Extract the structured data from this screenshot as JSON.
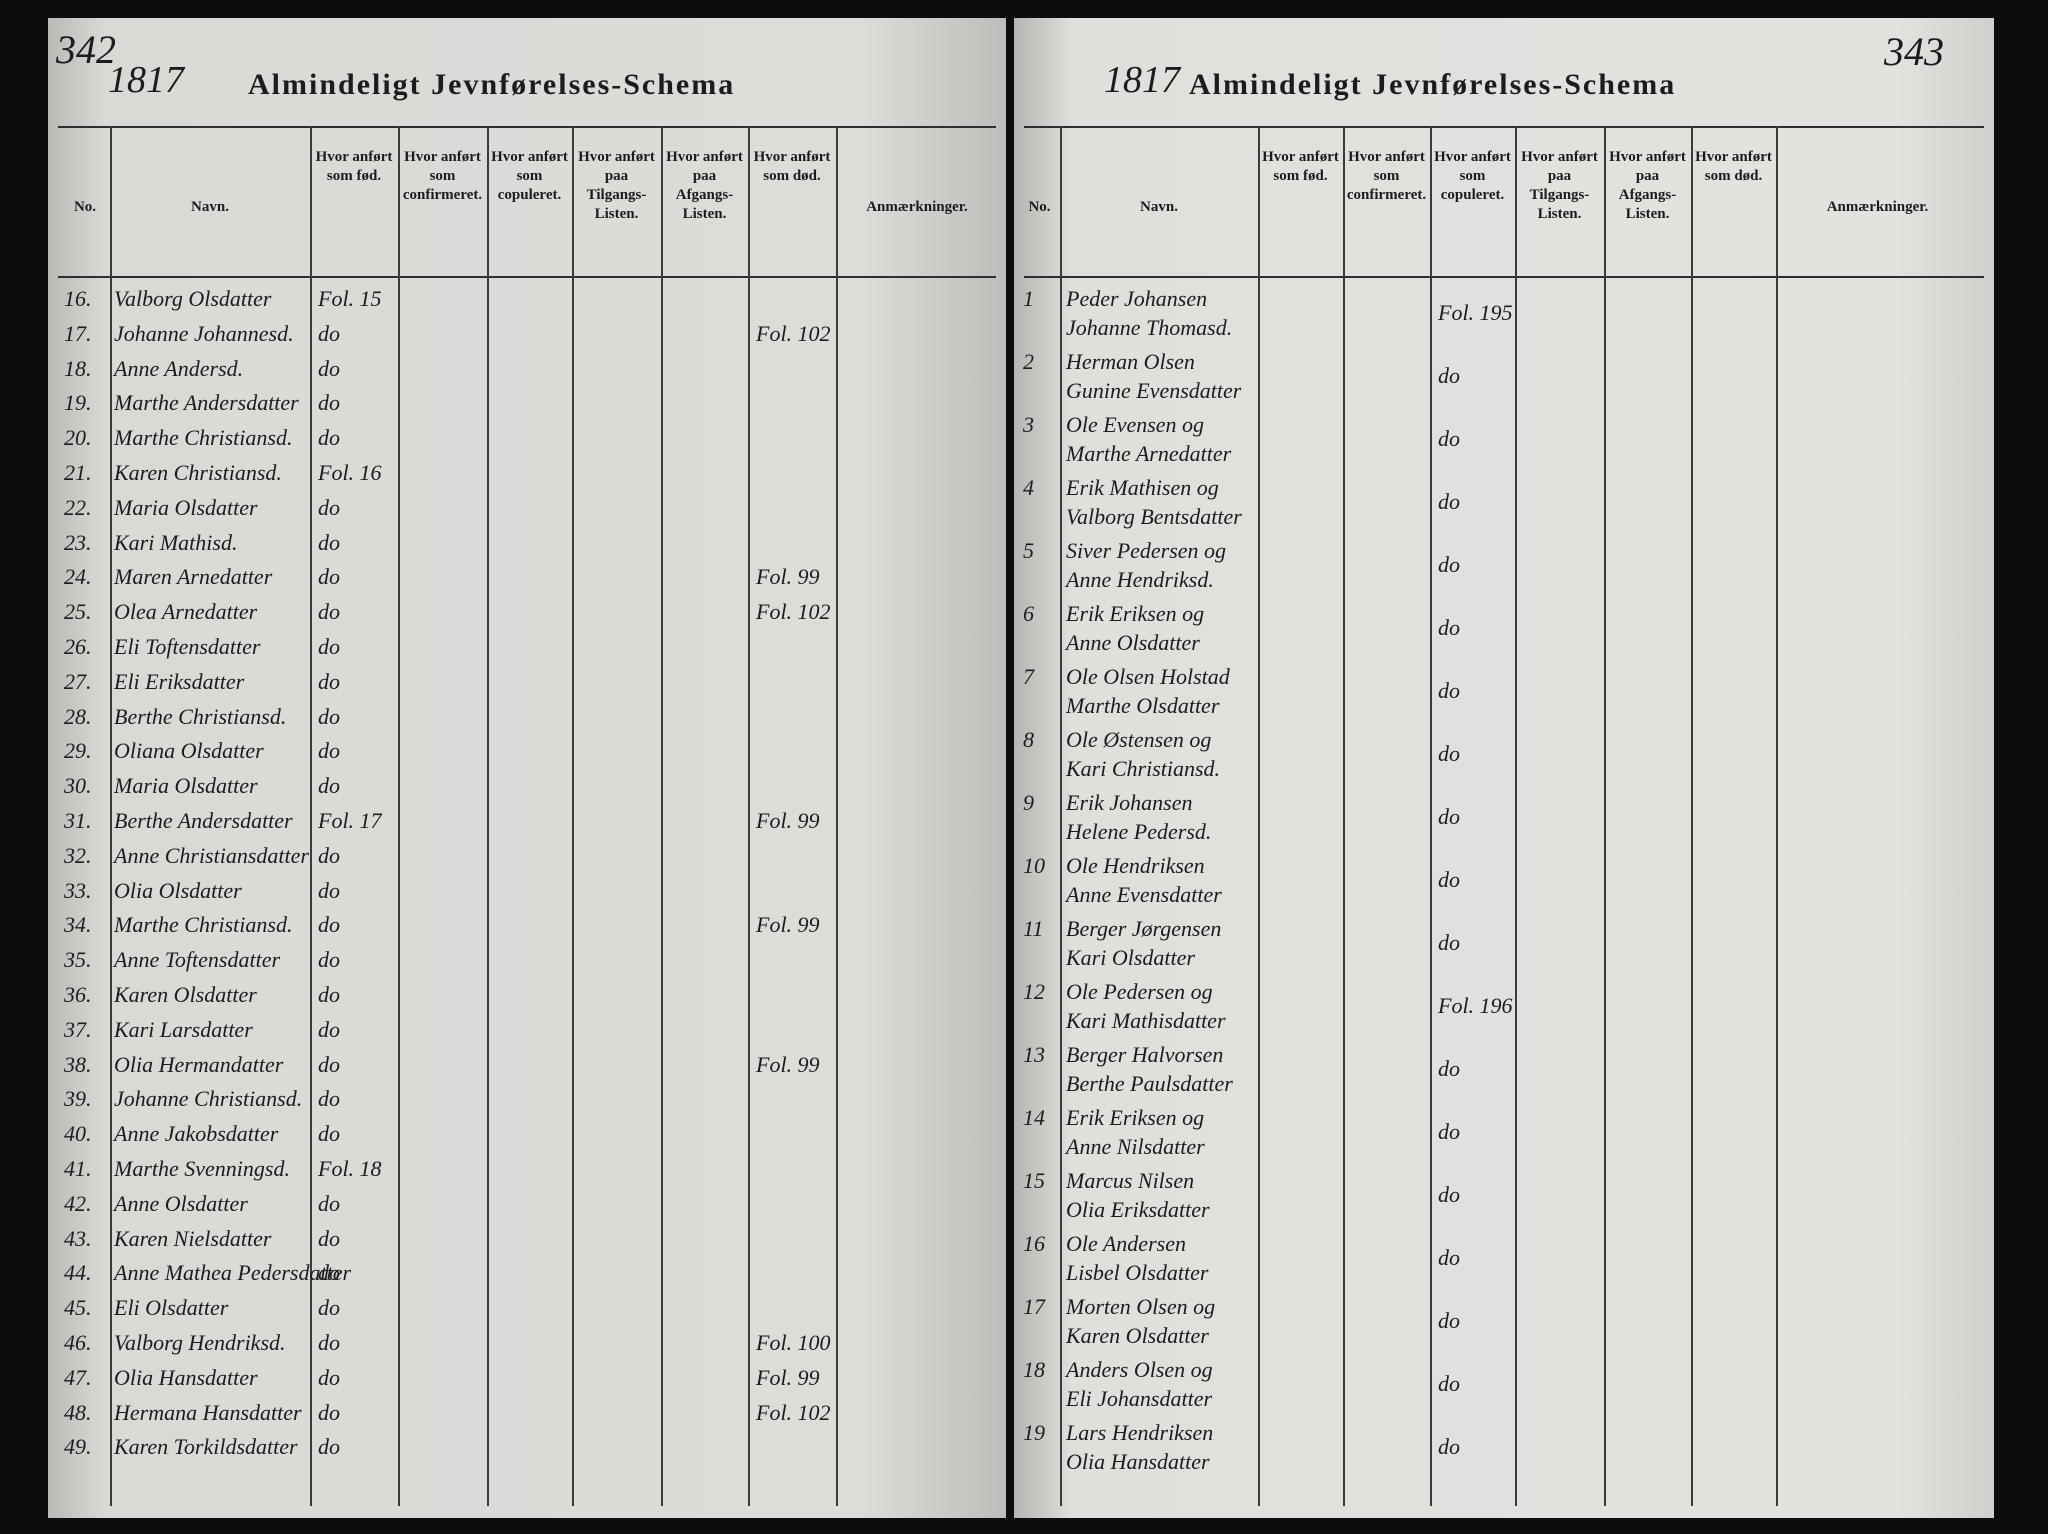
{
  "left_page": {
    "page_number": "342",
    "year": "1817",
    "title": "Almindeligt Jevnførelses-Schema",
    "columns": [
      "No.",
      "Navn.",
      "Hvor anført som fød.",
      "Hvor anført som confirmeret.",
      "Hvor anført som copuleret.",
      "Hvor anført paa Tilgangs-Listen.",
      "Hvor anført paa Afgangs-Listen.",
      "Hvor anført som død.",
      "Anmærkninger."
    ],
    "rows": [
      {
        "no": "16.",
        "name": "Valborg Olsdatter",
        "fod": "Fol. 15"
      },
      {
        "no": "17.",
        "name": "Johanne Johannesd.",
        "fod": "do",
        "dod": "Fol. 102"
      },
      {
        "no": "18.",
        "name": "Anne Andersd.",
        "fod": "do"
      },
      {
        "no": "19.",
        "name": "Marthe Andersdatter",
        "fod": "do"
      },
      {
        "no": "20.",
        "name": "Marthe Christiansd.",
        "fod": "do"
      },
      {
        "no": "21.",
        "name": "Karen Christiansd.",
        "fod": "Fol. 16"
      },
      {
        "no": "22.",
        "name": "Maria Olsdatter",
        "fod": "do"
      },
      {
        "no": "23.",
        "name": "Kari Mathisd.",
        "fod": "do"
      },
      {
        "no": "24.",
        "name": "Maren Arnedatter",
        "fod": "do",
        "dod": "Fol. 99"
      },
      {
        "no": "25.",
        "name": "Olea Arnedatter",
        "fod": "do",
        "dod": "Fol. 102"
      },
      {
        "no": "26.",
        "name": "Eli Toftensdatter",
        "fod": "do"
      },
      {
        "no": "27.",
        "name": "Eli Eriksdatter",
        "fod": "do"
      },
      {
        "no": "28.",
        "name": "Berthe Christiansd.",
        "fod": "do"
      },
      {
        "no": "29.",
        "name": "Oliana Olsdatter",
        "fod": "do"
      },
      {
        "no": "30.",
        "name": "Maria Olsdatter",
        "fod": "do"
      },
      {
        "no": "31.",
        "name": "Berthe Andersdatter",
        "fod": "Fol. 17",
        "dod": "Fol. 99"
      },
      {
        "no": "32.",
        "name": "Anne Christiansdatter",
        "fod": "do"
      },
      {
        "no": "33.",
        "name": "Olia Olsdatter",
        "fod": "do"
      },
      {
        "no": "34.",
        "name": "Marthe Christiansd.",
        "fod": "do",
        "dod": "Fol. 99"
      },
      {
        "no": "35.",
        "name": "Anne Toftensdatter",
        "fod": "do"
      },
      {
        "no": "36.",
        "name": "Karen Olsdatter",
        "fod": "do"
      },
      {
        "no": "37.",
        "name": "Kari Larsdatter",
        "fod": "do"
      },
      {
        "no": "38.",
        "name": "Olia Hermandatter",
        "fod": "do",
        "dod": "Fol. 99"
      },
      {
        "no": "39.",
        "name": "Johanne Christiansd.",
        "fod": "do"
      },
      {
        "no": "40.",
        "name": "Anne Jakobsdatter",
        "fod": "do"
      },
      {
        "no": "41.",
        "name": "Marthe Svenningsd.",
        "fod": "Fol. 18"
      },
      {
        "no": "42.",
        "name": "Anne Olsdatter",
        "fod": "do"
      },
      {
        "no": "43.",
        "name": "Karen Nielsdatter",
        "fod": "do"
      },
      {
        "no": "44.",
        "name": "Anne Mathea Pedersdatter",
        "fod": "do"
      },
      {
        "no": "45.",
        "name": "Eli Olsdatter",
        "fod": "do"
      },
      {
        "no": "46.",
        "name": "Valborg Hendriksd.",
        "fod": "do",
        "dod": "Fol. 100"
      },
      {
        "no": "47.",
        "name": "Olia Hansdatter",
        "fod": "do",
        "dod": "Fol. 99"
      },
      {
        "no": "48.",
        "name": "Hermana Hansdatter",
        "fod": "do",
        "dod": "Fol. 102"
      },
      {
        "no": "49.",
        "name": "Karen Torkildsdatter",
        "fod": "do"
      }
    ]
  },
  "right_page": {
    "page_number": "343",
    "year": "1817",
    "title": "Almindeligt Jevnførelses-Schema",
    "columns": [
      "No.",
      "Navn.",
      "Hvor anført som fød.",
      "Hvor anført som confirmeret.",
      "Hvor anført som copuleret.",
      "Hvor anført paa Tilgangs-Listen.",
      "Hvor anført paa Afgangs-Listen.",
      "Hvor anført som død.",
      "Anmærkninger."
    ],
    "rows": [
      {
        "no": "1",
        "names": [
          "Peder Johansen",
          "Johanne Thomasd."
        ],
        "copuleret": "Fol. 195"
      },
      {
        "no": "2",
        "names": [
          "Herman Olsen",
          "Gunine Evensdatter"
        ],
        "copuleret": "do"
      },
      {
        "no": "3",
        "names": [
          "Ole Evensen og",
          "Marthe Arnedatter"
        ],
        "copuleret": "do"
      },
      {
        "no": "4",
        "names": [
          "Erik Mathisen og",
          "Valborg Bentsdatter"
        ],
        "copuleret": "do"
      },
      {
        "no": "5",
        "names": [
          "Siver Pedersen og",
          "Anne Hendriksd."
        ],
        "copuleret": "do"
      },
      {
        "no": "6",
        "names": [
          "Erik Eriksen og",
          "Anne Olsdatter"
        ],
        "copuleret": "do"
      },
      {
        "no": "7",
        "names": [
          "Ole Olsen Holstad",
          "Marthe Olsdatter"
        ],
        "copuleret": "do"
      },
      {
        "no": "8",
        "names": [
          "Ole Østensen og",
          "Kari Christiansd."
        ],
        "copuleret": "do"
      },
      {
        "no": "9",
        "names": [
          "Erik Johansen",
          "Helene Pedersd."
        ],
        "copuleret": "do"
      },
      {
        "no": "10",
        "names": [
          "Ole Hendriksen",
          "Anne Evensdatter"
        ],
        "copuleret": "do"
      },
      {
        "no": "11",
        "names": [
          "Berger Jørgensen",
          "Kari Olsdatter"
        ],
        "copuleret": "do"
      },
      {
        "no": "12",
        "names": [
          "Ole Pedersen og",
          "Kari Mathisdatter"
        ],
        "copuleret": "Fol. 196"
      },
      {
        "no": "13",
        "names": [
          "Berger Halvorsen",
          "Berthe Paulsdatter"
        ],
        "copuleret": "do"
      },
      {
        "no": "14",
        "names": [
          "Erik Eriksen og",
          "Anne Nilsdatter"
        ],
        "copuleret": "do"
      },
      {
        "no": "15",
        "names": [
          "Marcus Nilsen",
          "Olia Eriksdatter"
        ],
        "copuleret": "do"
      },
      {
        "no": "16",
        "names": [
          "Ole Andersen",
          "Lisbel Olsdatter"
        ],
        "copuleret": "do"
      },
      {
        "no": "17",
        "names": [
          "Morten Olsen og",
          "Karen Olsdatter"
        ],
        "copuleret": "do"
      },
      {
        "no": "18",
        "names": [
          "Anders Olsen og",
          "Eli Johansdatter"
        ],
        "copuleret": "do"
      },
      {
        "no": "19",
        "names": [
          "Lars Hendriksen",
          "Olia Hansdatter"
        ],
        "copuleret": "do"
      }
    ]
  }
}
